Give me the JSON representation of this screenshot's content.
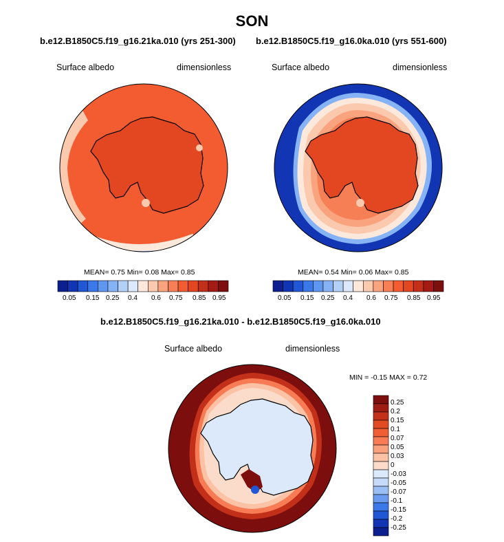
{
  "figure": {
    "title": "SON"
  },
  "palettes": {
    "abs": [
      "#0b1f8f",
      "#1236b3",
      "#1f57d4",
      "#3b78ea",
      "#5f96f0",
      "#86b3f5",
      "#b3d0f7",
      "#dbe9fb",
      "#fde8dc",
      "#fbc9ae",
      "#f9a47f",
      "#f77f55",
      "#f25c30",
      "#e24722",
      "#c3301a",
      "#a31b14",
      "#7d0e0e"
    ],
    "diff": [
      "#0b1f8f",
      "#1236b3",
      "#1f57d4",
      "#3b78ea",
      "#6a9bf0",
      "#9bbff5",
      "#c6dbf9",
      "#dbe9fb",
      "#fbdccb",
      "#fbc2a6",
      "#f9a07d",
      "#f77c55",
      "#f25e33",
      "#e24a23",
      "#c4311a",
      "#9f1c14",
      "#7d0e0e"
    ]
  },
  "chart_data": [
    {
      "type": "polar-map",
      "title": "b.e12.B1850C5.f19_g16.21ka.010 (yrs 251-300)",
      "left_label": "Surface albedo",
      "right_label": "dimensionless",
      "stats_text": {
        "mean_label": "MEAN=",
        "mean": "0.75",
        "min_label": "Min=",
        "min": "0.08",
        "max_label": "Max=",
        "max": "0.85"
      },
      "colorbar_ticks": [
        "0.05",
        "0.15",
        "0.25",
        "0.4",
        "0.6",
        "0.75",
        "0.85",
        "0.95"
      ],
      "ice_edge_color": "#f25c30",
      "antarctica_color": "#e24722"
    },
    {
      "type": "polar-map",
      "title": "b.e12.B1850C5.f19_g16.0ka.010 (yrs 551-600)",
      "left_label": "Surface albedo",
      "right_label": "dimensionless",
      "stats_text": {
        "mean_label": "MEAN=",
        "mean": "0.54",
        "min_label": "Min=",
        "min": "0.06",
        "max_label": "Max=",
        "max": "0.85"
      },
      "colorbar_ticks": [
        "0.05",
        "0.15",
        "0.25",
        "0.4",
        "0.6",
        "0.75",
        "0.85",
        "0.95"
      ],
      "ocean_color": "#1236b3",
      "antarctica_color": "#e24722"
    },
    {
      "type": "polar-map-difference",
      "title": "b.e12.B1850C5.f19_g16.21ka.010 - b.e12.B1850C5.f19_g16.0ka.010",
      "left_label": "Surface albedo",
      "right_label": "dimensionless",
      "stats_text": {
        "min_label": "MIN =",
        "min": "-0.15",
        "max_label": "MAX =",
        "max": "0.72"
      },
      "colorbar_ticks": [
        "0.25",
        "0.2",
        "0.15",
        "0.1",
        "0.07",
        "0.05",
        "0.03",
        "0",
        "-0.03",
        "-0.05",
        "-0.07",
        "-0.1",
        "-0.15",
        "-0.2",
        "-0.25"
      ],
      "outer_color": "#7d0e0e",
      "antarctica_color": "#dbe9fb"
    }
  ]
}
